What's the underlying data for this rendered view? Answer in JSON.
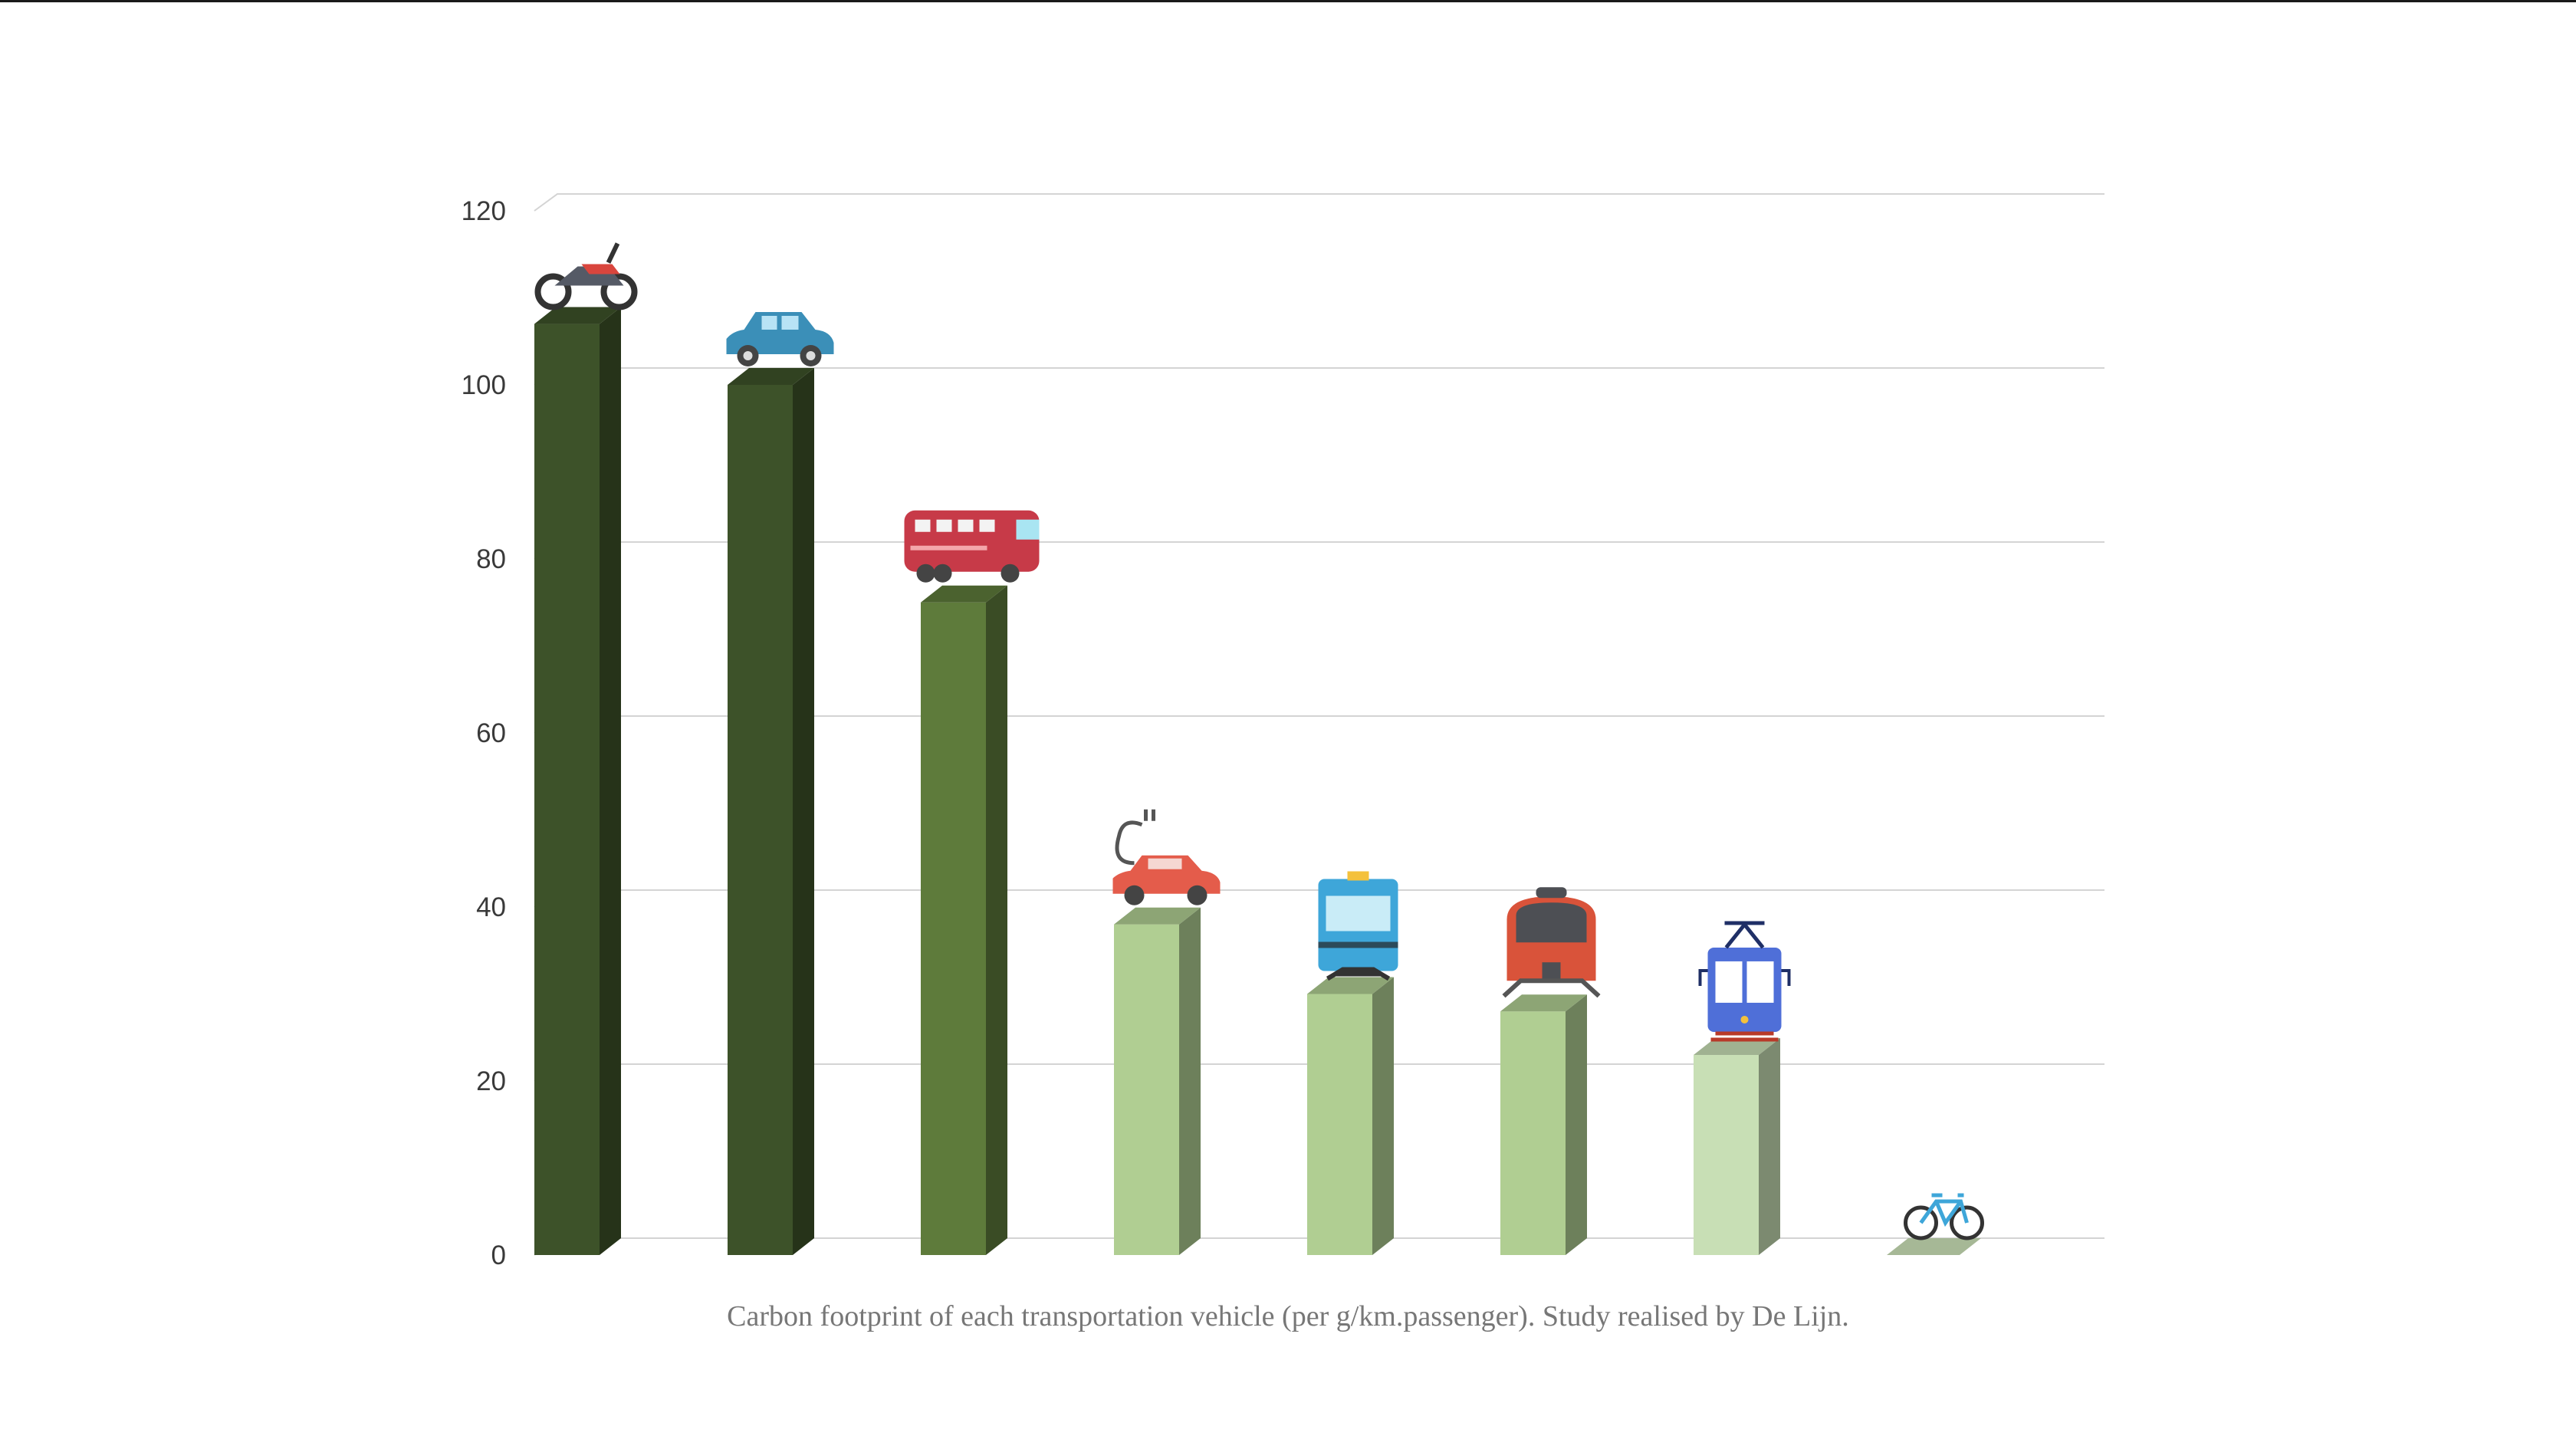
{
  "chart_data": {
    "type": "bar",
    "caption": "Carbon footprint of  each transportation vehicle (per g/km.passenger). Study realised by De Lijn.",
    "ylim": [
      0,
      120
    ],
    "yticks": [
      "0",
      "20",
      "40",
      "60",
      "80",
      "100",
      "120"
    ],
    "grid": true,
    "categories": [
      {
        "vehicle": "motorcycle",
        "icon": "motorcycle-icon",
        "value": 107,
        "color": "#3d5229"
      },
      {
        "vehicle": "car",
        "icon": "car-icon",
        "value": 100,
        "color": "#3d5229"
      },
      {
        "vehicle": "bus",
        "icon": "bus-icon",
        "value": 75,
        "color": "#5e7b3b"
      },
      {
        "vehicle": "electric car",
        "icon": "electric-car-icon",
        "value": 38,
        "color": "#b0ce92"
      },
      {
        "vehicle": "metro",
        "icon": "metro-icon",
        "value": 30,
        "color": "#b0ce92"
      },
      {
        "vehicle": "train",
        "icon": "train-icon",
        "value": 28,
        "color": "#b0ce92"
      },
      {
        "vehicle": "tram",
        "icon": "tram-icon",
        "value": 23,
        "color": "#c8dfb5"
      },
      {
        "vehicle": "bicycle",
        "icon": "bicycle-icon",
        "value": 0,
        "color": "#a6b896"
      }
    ]
  }
}
